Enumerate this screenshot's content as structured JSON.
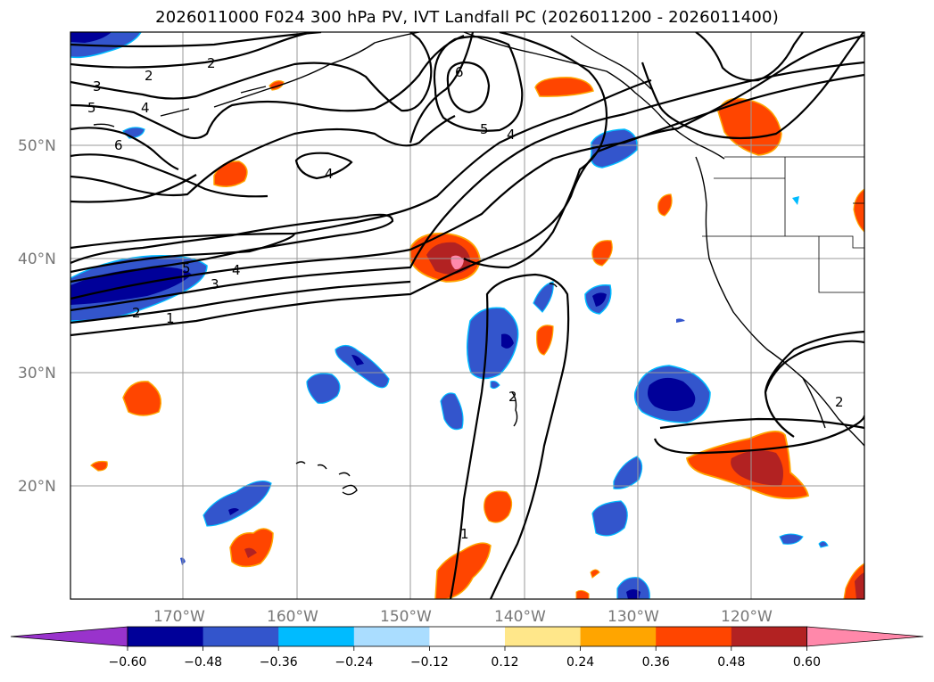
{
  "title": "2026011000 F024 300 hPa PV, IVT Landfall PC (2026011200 - 2026011400)",
  "lat_labels": [
    "50°N",
    "40°N",
    "30°N",
    "20°N"
  ],
  "lon_labels": [
    "170°W",
    "160°W",
    "150°W",
    "140°W",
    "130°W",
    "120°W"
  ],
  "contour_levels": [
    "1",
    "2",
    "3",
    "4",
    "5",
    "6"
  ],
  "contour_labels_shown": [
    "2",
    "3",
    "5",
    "4",
    "6",
    "2",
    "6",
    "5",
    "4",
    "4",
    "5",
    "4",
    "3",
    "2",
    "1",
    "2",
    "1",
    "2"
  ],
  "colorbar": {
    "tick_labels": [
      "−0.60",
      "−0.48",
      "−0.36",
      "−0.24",
      "−0.12",
      "0.12",
      "0.24",
      "0.36",
      "0.48",
      "0.60"
    ],
    "colors": [
      "#9933cc",
      "#000099",
      "#3355cc",
      "#00bbff",
      "#aaddff",
      "#ffffff",
      "#ffe78a",
      "#ffa500",
      "#ff4500",
      "#b22222",
      "#ff88aa"
    ]
  }
}
